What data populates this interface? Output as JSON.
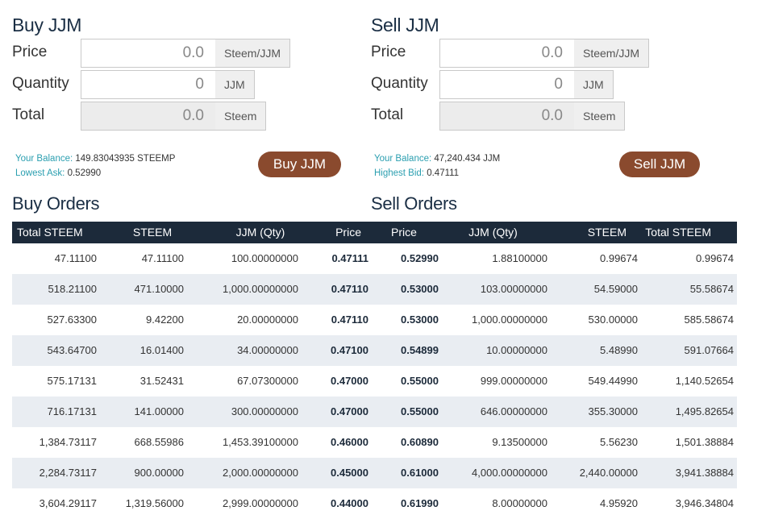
{
  "buy_panel": {
    "title": "Buy JJM",
    "price_label": "Price",
    "price_value": "0.0",
    "price_unit": "Steem/JJM",
    "qty_label": "Quantity",
    "qty_value": "0",
    "qty_unit": "JJM",
    "total_label": "Total",
    "total_value": "0.0",
    "total_unit": "Steem",
    "balance_key": "Your Balance:",
    "balance_val": "149.83043935 STEEMP",
    "ask_key": "Lowest Ask:",
    "ask_val": "0.52990",
    "button": "Buy JJM"
  },
  "sell_panel": {
    "title": "Sell JJM",
    "price_label": "Price",
    "price_value": "0.0",
    "price_unit": "Steem/JJM",
    "qty_label": "Quantity",
    "qty_value": "0",
    "qty_unit": "JJM",
    "total_label": "Total",
    "total_value": "0.0",
    "total_unit": "Steem",
    "balance_key": "Your Balance:",
    "balance_val": "47,240.434 JJM",
    "bid_key": "Highest Bid:",
    "bid_val": "0.47111",
    "button": "Sell JJM"
  },
  "buy_orders_title": "Buy Orders",
  "sell_orders_title": "Sell Orders",
  "headers": [
    "Total STEEM",
    "STEEM",
    "JJM (Qty)",
    "Price",
    "Price",
    "JJM (Qty)",
    "STEEM",
    "Total STEEM"
  ],
  "rows": [
    [
      "47.11100",
      "47.11100",
      "100.00000000",
      "0.47111",
      "0.52990",
      "1.88100000",
      "0.99674",
      "0.99674"
    ],
    [
      "518.21100",
      "471.10000",
      "1,000.00000000",
      "0.47110",
      "0.53000",
      "103.00000000",
      "54.59000",
      "55.58674"
    ],
    [
      "527.63300",
      "9.42200",
      "20.00000000",
      "0.47110",
      "0.53000",
      "1,000.00000000",
      "530.00000",
      "585.58674"
    ],
    [
      "543.64700",
      "16.01400",
      "34.00000000",
      "0.47100",
      "0.54899",
      "10.00000000",
      "5.48990",
      "591.07664"
    ],
    [
      "575.17131",
      "31.52431",
      "67.07300000",
      "0.47000",
      "0.55000",
      "999.00000000",
      "549.44990",
      "1,140.52654"
    ],
    [
      "716.17131",
      "141.00000",
      "300.00000000",
      "0.47000",
      "0.55000",
      "646.00000000",
      "355.30000",
      "1,495.82654"
    ],
    [
      "1,384.73117",
      "668.55986",
      "1,453.39100000",
      "0.46000",
      "0.60890",
      "9.13500000",
      "5.56230",
      "1,501.38884"
    ],
    [
      "2,284.73117",
      "900.00000",
      "2,000.00000000",
      "0.45000",
      "0.61000",
      "4,000.00000000",
      "2,440.00000",
      "3,941.38884"
    ],
    [
      "3,604.29117",
      "1,319.56000",
      "2,999.00000000",
      "0.44000",
      "0.61990",
      "8.00000000",
      "4.95920",
      "3,946.34804"
    ]
  ]
}
